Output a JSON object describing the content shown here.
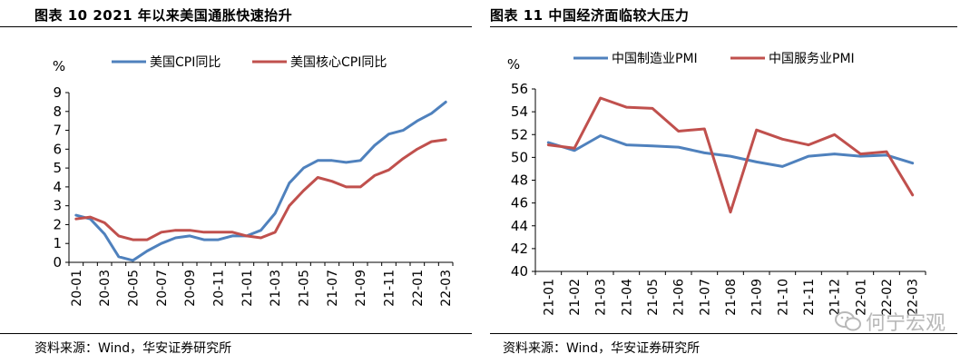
{
  "chart_data": [
    {
      "type": "line",
      "title": "图表 10 2021 年以来美国通胀快速抬升",
      "ylabel": "%",
      "source": "资料来源：Wind，华安证券研究所",
      "ylim": [
        0,
        9
      ],
      "yticks": [
        0,
        1,
        2,
        3,
        4,
        5,
        6,
        7,
        8,
        9
      ],
      "x": [
        "20-01",
        "20-02",
        "20-03",
        "20-04",
        "20-05",
        "20-06",
        "20-07",
        "20-08",
        "20-09",
        "20-10",
        "20-11",
        "20-12",
        "21-01",
        "21-02",
        "21-03",
        "21-04",
        "21-05",
        "21-06",
        "21-07",
        "21-08",
        "21-09",
        "21-10",
        "21-11",
        "21-12",
        "22-01",
        "22-02",
        "22-03"
      ],
      "xticks": [
        "20-01",
        "20-03",
        "20-05",
        "20-07",
        "20-09",
        "20-11",
        "21-01",
        "21-03",
        "21-05",
        "21-07",
        "21-09",
        "21-11",
        "22-01",
        "22-03"
      ],
      "series": [
        {
          "name": "美国CPI同比",
          "color": "#4f81bd",
          "values": [
            2.5,
            2.3,
            1.5,
            0.3,
            0.1,
            0.6,
            1.0,
            1.3,
            1.4,
            1.2,
            1.2,
            1.4,
            1.4,
            1.7,
            2.6,
            4.2,
            5.0,
            5.4,
            5.4,
            5.3,
            5.4,
            6.2,
            6.8,
            7.0,
            7.5,
            7.9,
            8.5
          ]
        },
        {
          "name": "美国核心CPI同比",
          "color": "#c0504d",
          "values": [
            2.3,
            2.4,
            2.1,
            1.4,
            1.2,
            1.2,
            1.6,
            1.7,
            1.7,
            1.6,
            1.6,
            1.6,
            1.4,
            1.3,
            1.6,
            3.0,
            3.8,
            4.5,
            4.3,
            4.0,
            4.0,
            4.6,
            4.9,
            5.5,
            6.0,
            6.4,
            6.5
          ]
        }
      ]
    },
    {
      "type": "line",
      "title": "图表 11  中国经济面临较大压力",
      "ylabel": "%",
      "source": "资料来源：Wind，华安证券研究所",
      "ylim": [
        40,
        56
      ],
      "yticks": [
        40,
        42,
        44,
        46,
        48,
        50,
        52,
        54,
        56
      ],
      "x": [
        "21-01",
        "21-02",
        "21-03",
        "21-04",
        "21-05",
        "21-06",
        "21-07",
        "21-08",
        "21-09",
        "21-10",
        "21-11",
        "21-12",
        "22-01",
        "22-02",
        "22-03"
      ],
      "xticks": [
        "21-01",
        "21-02",
        "21-03",
        "21-04",
        "21-05",
        "21-06",
        "21-07",
        "21-08",
        "21-09",
        "21-10",
        "21-11",
        "21-12",
        "22-01",
        "22-02",
        "22-03"
      ],
      "series": [
        {
          "name": "中国制造业PMI",
          "color": "#4f81bd",
          "values": [
            51.3,
            50.6,
            51.9,
            51.1,
            51.0,
            50.9,
            50.4,
            50.1,
            49.6,
            49.2,
            50.1,
            50.3,
            50.1,
            50.2,
            49.5
          ]
        },
        {
          "name": "中国服务业PMI",
          "color": "#c0504d",
          "values": [
            51.1,
            50.8,
            55.2,
            54.4,
            54.3,
            52.3,
            52.5,
            45.2,
            52.4,
            51.6,
            51.1,
            52.0,
            50.3,
            50.5,
            46.7
          ]
        }
      ]
    }
  ],
  "watermark": "何宁宏观"
}
